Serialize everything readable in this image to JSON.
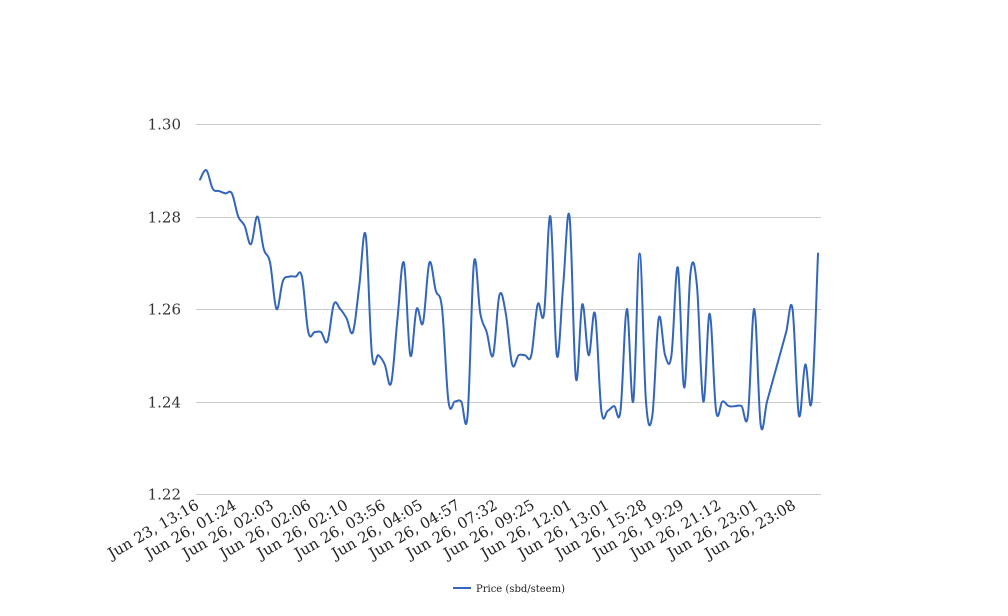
{
  "chart_data": {
    "type": "line",
    "title": "",
    "xlabel": "",
    "ylabel": "",
    "ylim": [
      1.22,
      1.3
    ],
    "y_ticks": [
      "1.22",
      "1.24",
      "1.26",
      "1.28",
      "1.30"
    ],
    "x_tick_labels": [
      "Jun 23, 13:16",
      "Jun 26, 01:24",
      "Jun 26, 02:03",
      "Jun 26, 02:06",
      "Jun 26, 02:10",
      "Jun 26, 03:56",
      "Jun 26, 04:05",
      "Jun 26, 04:57",
      "Jun 26, 07:32",
      "Jun 26, 09:25",
      "Jun 26, 12:01",
      "Jun 26, 13:01",
      "Jun 26, 15:28",
      "Jun 26, 19:29",
      "Jun 26, 21:12",
      "Jun 26, 23:01",
      "Jun 26, 23:08"
    ],
    "grid": true,
    "legend_position": "bottom",
    "series": [
      {
        "name": "Price (sbd/steem)",
        "color": "#3366bb",
        "values": [
          1.288,
          1.29,
          1.286,
          1.2855,
          1.285,
          1.285,
          1.28,
          1.278,
          1.274,
          1.28,
          1.273,
          1.27,
          1.26,
          1.266,
          1.267,
          1.267,
          1.267,
          1.255,
          1.255,
          1.255,
          1.253,
          1.261,
          1.26,
          1.258,
          1.255,
          1.265,
          1.276,
          1.25,
          1.25,
          1.248,
          1.244,
          1.258,
          1.27,
          1.25,
          1.26,
          1.257,
          1.27,
          1.264,
          1.26,
          1.24,
          1.24,
          1.24,
          1.237,
          1.27,
          1.259,
          1.255,
          1.25,
          1.263,
          1.259,
          1.248,
          1.25,
          1.25,
          1.25,
          1.261,
          1.259,
          1.28,
          1.25,
          1.265,
          1.28,
          1.245,
          1.261,
          1.25,
          1.259,
          1.238,
          1.238,
          1.239,
          1.238,
          1.26,
          1.24,
          1.272,
          1.24,
          1.237,
          1.258,
          1.25,
          1.25,
          1.269,
          1.243,
          1.268,
          1.265,
          1.24,
          1.259,
          1.238,
          1.24,
          1.239,
          1.239,
          1.239,
          1.237,
          1.26,
          1.235,
          1.24,
          1.245,
          1.25,
          1.255,
          1.26,
          1.237,
          1.248,
          1.24,
          1.272
        ]
      }
    ]
  }
}
